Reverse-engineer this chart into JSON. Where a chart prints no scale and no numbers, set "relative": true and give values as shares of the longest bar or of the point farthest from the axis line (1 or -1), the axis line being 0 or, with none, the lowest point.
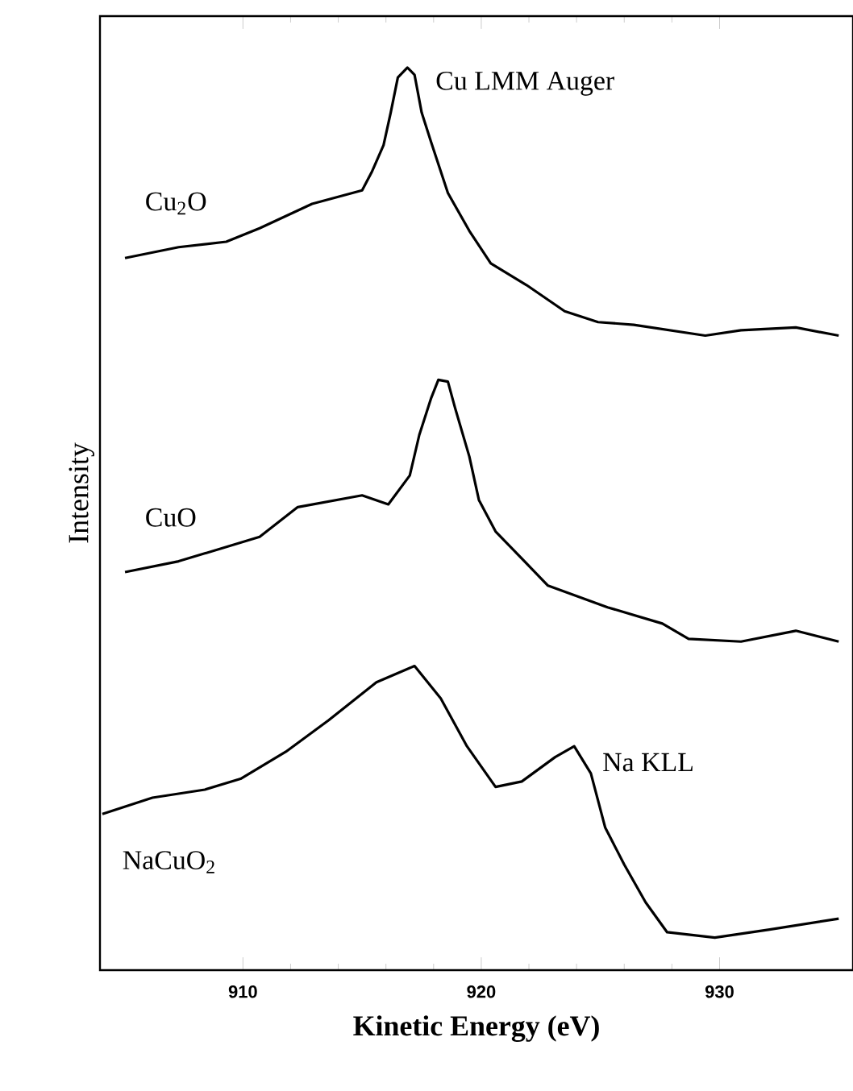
{
  "chart_data": {
    "type": "line",
    "relative": true,
    "xlabel": "Kinetic Energy (eV)",
    "ylabel": "Intensity",
    "xlim": [
      904,
      935.6
    ],
    "xticks": [
      910,
      920,
      930
    ],
    "annotations": [
      {
        "text": "Cu LMM Auger",
        "x": 916.9,
        "y": 1.0
      },
      {
        "text": "Na KLL",
        "x": 923.9,
        "y": 0.248
      }
    ],
    "series": [
      {
        "name": "Cu$_{2}$O",
        "color": "#000000",
        "x": [
          905.05,
          907.3,
          909.3,
          910.7,
          912.9,
          915.0,
          915.4,
          915.9,
          916.2,
          916.5,
          916.9,
          917.2,
          917.5,
          917.9,
          918.6,
          919.5,
          920.4,
          921.9,
          923.5,
          924.9,
          926.4,
          929.4,
          930.9,
          933.2,
          935.0
        ],
        "values": [
          0.789,
          0.801,
          0.807,
          0.822,
          0.849,
          0.864,
          0.884,
          0.914,
          0.95,
          0.989,
          1.0,
          0.992,
          0.95,
          0.917,
          0.861,
          0.819,
          0.783,
          0.759,
          0.73,
          0.718,
          0.715,
          0.703,
          0.709,
          0.712,
          0.703
        ]
      },
      {
        "name": "CuO",
        "color": "#000000",
        "x": [
          905.05,
          907.3,
          910.7,
          912.3,
          915.0,
          916.1,
          917.0,
          917.4,
          917.9,
          918.2,
          918.6,
          918.9,
          919.5,
          919.9,
          920.6,
          921.7,
          922.8,
          925.3,
          927.6,
          928.7,
          930.9,
          933.2,
          935.0
        ],
        "values": [
          0.441,
          0.453,
          0.48,
          0.513,
          0.526,
          0.516,
          0.548,
          0.593,
          0.634,
          0.654,
          0.652,
          0.623,
          0.569,
          0.521,
          0.486,
          0.456,
          0.426,
          0.402,
          0.384,
          0.367,
          0.364,
          0.376,
          0.364
        ]
      },
      {
        "name": "NaCuO$_{2}$",
        "color": "#000000",
        "x": [
          904.1,
          906.2,
          908.4,
          909.9,
          911.8,
          913.6,
          915.6,
          917.2,
          918.3,
          919.4,
          920.6,
          921.7,
          923.1,
          923.9,
          924.6,
          925.2,
          926.0,
          926.9,
          927.8,
          929.8,
          932.1,
          935.0
        ],
        "values": [
          0.173,
          0.191,
          0.2,
          0.212,
          0.242,
          0.277,
          0.319,
          0.337,
          0.301,
          0.248,
          0.203,
          0.209,
          0.236,
          0.248,
          0.218,
          0.158,
          0.117,
          0.075,
          0.042,
          0.036,
          0.045,
          0.057
        ]
      }
    ]
  }
}
